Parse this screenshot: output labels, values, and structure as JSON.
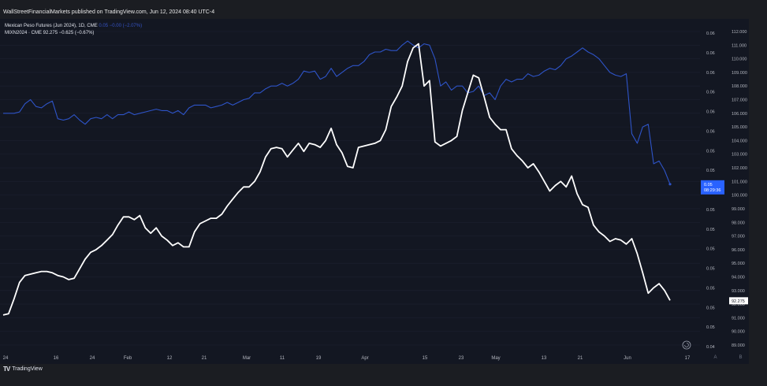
{
  "header": {
    "publisher_line": "WallStreetFinancialMarkets published on TradingView.com, Jun 12, 2024 08:40 UTC-4"
  },
  "legend": {
    "series1_name": "Mexican Peso Futures (Jun 2024), 1D, CME",
    "series1_vals": "0.05 −0.00 (−2.07%)",
    "series2_line": "MIXN2024 · CME  92.275  −0.625 (−0.67%)"
  },
  "colors": {
    "background": "#131722",
    "peso_line": "#2e54c8",
    "white_line": "#ffffff",
    "price_tag": "#2962ff"
  },
  "price_tags": {
    "peso_value": "0.05",
    "peso_countdown": "08:29:36",
    "white_value": "92.275"
  },
  "footer": {
    "brand": "TradingView",
    "left_btn": "A",
    "right_btn": "B"
  },
  "chart_data": {
    "type": "line",
    "x_labels": [
      "24",
      "16",
      "24",
      "Feb",
      "12",
      "21",
      "Mar",
      "11",
      "19",
      "Apr",
      "15",
      "23",
      "May",
      "13",
      "21",
      "Jun",
      "17"
    ],
    "left_axis_labels": [
      "0.06",
      "0.06",
      "0.06",
      "0.06",
      "0.06",
      "0.06",
      "0.05",
      "0.05",
      "0.05",
      "0.05",
      "0.05",
      "0.05",
      "0.05",
      "0.05",
      "0.05",
      "0.05",
      "0.04"
    ],
    "right_axis_labels": [
      "112.000",
      "111.000",
      "110.000",
      "109.000",
      "108.000",
      "107.000",
      "106.000",
      "105.000",
      "104.000",
      "103.000",
      "102.000",
      "101.000",
      "100.000",
      "99.000",
      "98.000",
      "97.000",
      "96.000",
      "95.000",
      "94.000",
      "93.000",
      "92.000",
      "91.000",
      "90.000",
      "89.000"
    ],
    "right_axis": {
      "min": 89,
      "max": 112
    },
    "series": [
      {
        "values": [
          106.0,
          106.0,
          106.0,
          106.1,
          106.7,
          107.0,
          106.5,
          106.4,
          106.7,
          106.9,
          105.6,
          105.5,
          105.6,
          105.9,
          105.5,
          105.2,
          105.6,
          105.7,
          105.6,
          105.9,
          105.6,
          105.9,
          105.9,
          106.1,
          105.9,
          106.0,
          106.1,
          106.2,
          106.3,
          106.2,
          106.2,
          106.0,
          106.2,
          105.9,
          106.4,
          106.6,
          106.6,
          106.6,
          106.4,
          106.5,
          106.6,
          106.8,
          106.6,
          106.8,
          107.0,
          107.1,
          107.5,
          107.5,
          107.8,
          108.0,
          108.0,
          108.2,
          108.0,
          108.2,
          108.5,
          109.1,
          109.0,
          109.1,
          108.5,
          108.7,
          109.3,
          108.7,
          109.0,
          109.3,
          109.5,
          109.5,
          109.8,
          110.3,
          110.5,
          110.5,
          110.7,
          110.6,
          110.6,
          111.0,
          111.3,
          111.0,
          110.8,
          111.1,
          111.0,
          110.0,
          108.0,
          108.3,
          107.7,
          108.0,
          108.0,
          107.5,
          107.6,
          108.0,
          107.3,
          107.5,
          107.0,
          108.0,
          108.5,
          108.3,
          108.5,
          108.5,
          108.9,
          108.7,
          108.8,
          109.1,
          109.3,
          109.2,
          109.5,
          110.0,
          110.2,
          110.5,
          110.8,
          110.5,
          110.3,
          110.0,
          109.5,
          109.0,
          108.8,
          108.7,
          108.9,
          104.5,
          103.8,
          105.0,
          105.2,
          102.3,
          102.5,
          101.8,
          100.8
        ],
        "axis": "right"
      },
      {
        "values": [
          91.2,
          91.3,
          92.4,
          93.6,
          94.1,
          94.2,
          94.3,
          94.4,
          94.4,
          94.3,
          94.1,
          94.0,
          93.8,
          93.9,
          94.6,
          95.3,
          95.8,
          96.0,
          96.3,
          96.7,
          97.1,
          97.8,
          98.4,
          98.4,
          98.2,
          98.5,
          97.6,
          97.2,
          97.6,
          97.0,
          96.7,
          96.3,
          96.5,
          96.2,
          96.2,
          97.3,
          97.9,
          98.1,
          98.3,
          98.3,
          98.6,
          99.2,
          99.7,
          100.2,
          100.6,
          100.6,
          101.0,
          101.7,
          102.8,
          103.4,
          103.5,
          103.4,
          102.8,
          103.3,
          103.8,
          103.2,
          103.8,
          103.7,
          103.5,
          104.0,
          104.9,
          103.7,
          103.1,
          102.1,
          102.0,
          103.5,
          103.6,
          103.7,
          103.8,
          104.0,
          104.8,
          106.5,
          107.2,
          108.0,
          109.8,
          110.8,
          111.1,
          108.0,
          108.4,
          103.9,
          103.6,
          103.8,
          104.0,
          104.3,
          106.2,
          107.5,
          108.8,
          108.6,
          107.2,
          105.7,
          105.2,
          104.8,
          104.8,
          103.4,
          102.9,
          102.5,
          102.0,
          102.3,
          101.7,
          101.0,
          100.3,
          100.7,
          101.0,
          100.6,
          101.4,
          100.1,
          99.3,
          99.1,
          97.8,
          97.3,
          97.0,
          96.6,
          96.8,
          96.7,
          96.4,
          96.8,
          95.7,
          94.3,
          92.8,
          93.2,
          93.5,
          93.0,
          92.275
        ],
        "axis": "right"
      }
    ]
  }
}
